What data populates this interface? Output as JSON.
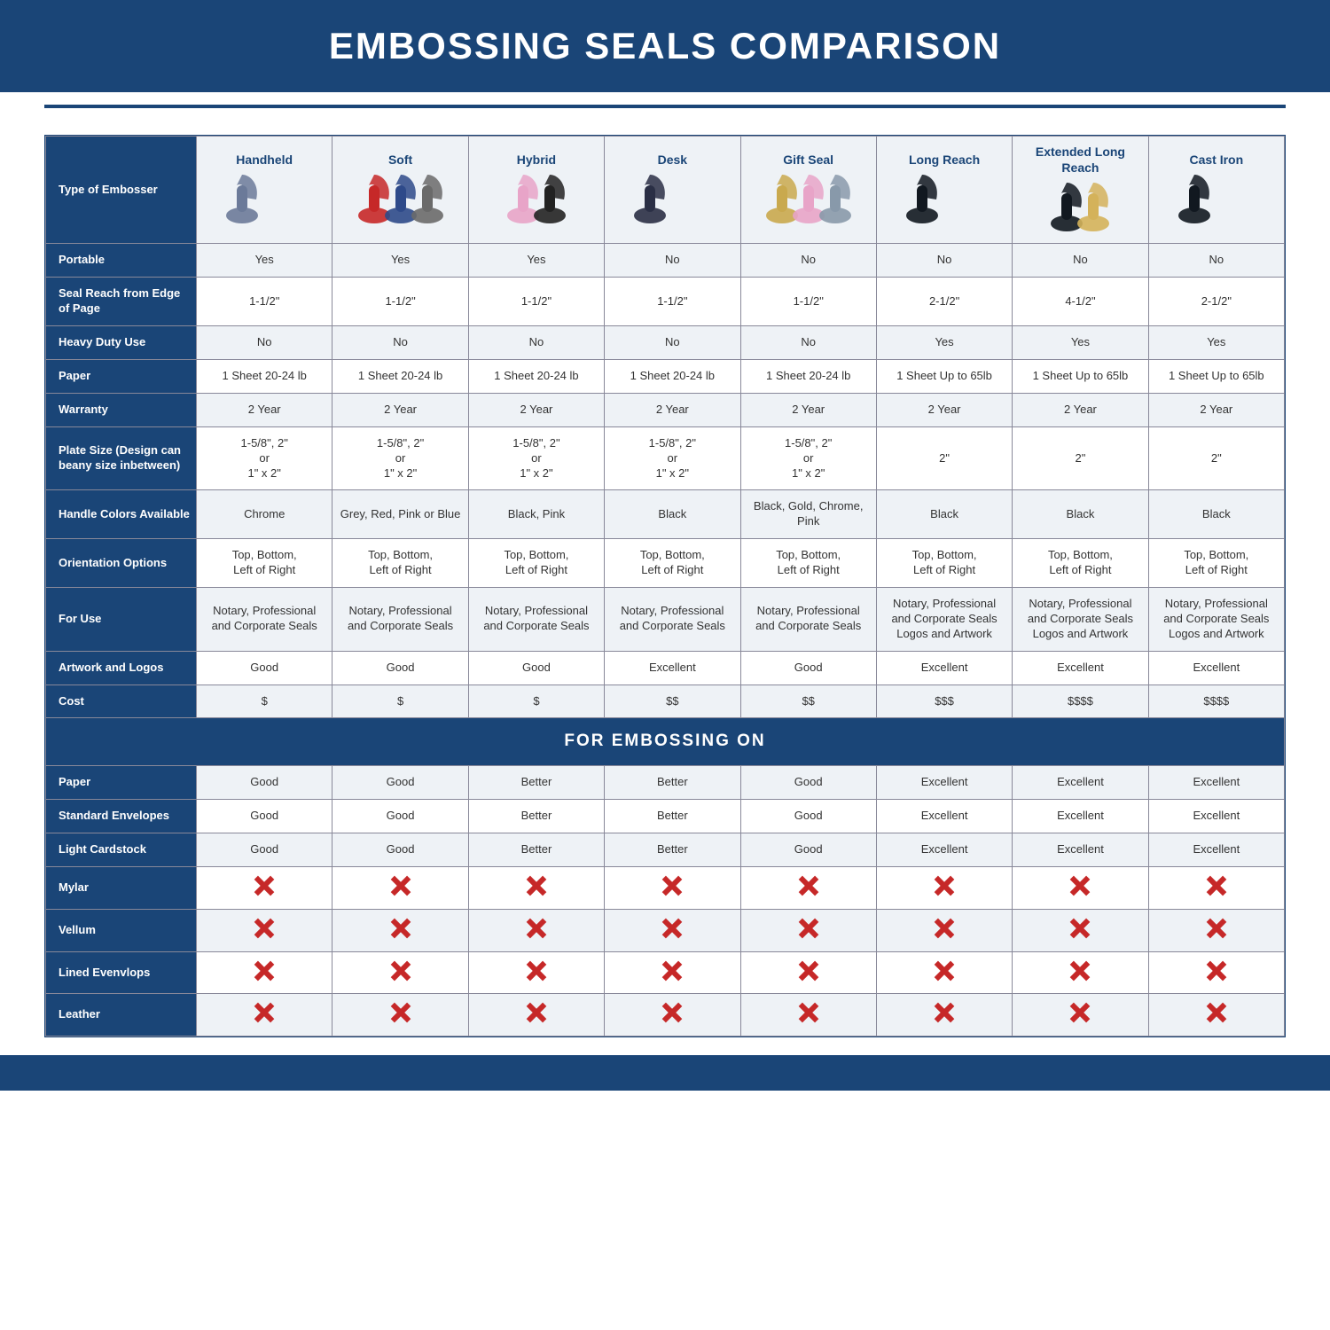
{
  "title": "EMBOSSING SEALS COMPARISON",
  "colors": {
    "brand": "#1a4577",
    "bg_alt": "#eef2f6",
    "bg": "#ffffff",
    "x": "#c62828",
    "border": "#889"
  },
  "typography": {
    "title_fontsize": 42,
    "header_fontsize": 14,
    "cell_fontsize": 13,
    "section_fontsize": 19
  },
  "header": {
    "label": "Type of Embosser",
    "columns": [
      "Handheld",
      "Soft",
      "Hybrid",
      "Desk",
      "Gift Seal",
      "Long Reach",
      "Extended Long Reach",
      "Cast Iron"
    ]
  },
  "product_images": [
    {
      "name": "handheld",
      "shapes": [
        {
          "fill": "#6b7a99"
        }
      ]
    },
    {
      "name": "soft",
      "shapes": [
        {
          "fill": "#c62828"
        },
        {
          "fill": "#2e4a8a"
        },
        {
          "fill": "#6a6a6a"
        }
      ]
    },
    {
      "name": "hybrid",
      "shapes": [
        {
          "fill": "#e8a4c8"
        },
        {
          "fill": "#222222"
        }
      ]
    },
    {
      "name": "desk",
      "shapes": [
        {
          "fill": "#2a2f45"
        }
      ]
    },
    {
      "name": "gift",
      "shapes": [
        {
          "fill": "#c9a94e"
        },
        {
          "fill": "#e8a4c8"
        },
        {
          "fill": "#8899aa"
        }
      ]
    },
    {
      "name": "longreach",
      "shapes": [
        {
          "fill": "#111820"
        }
      ]
    },
    {
      "name": "extlongreach",
      "shapes": [
        {
          "fill": "#111820"
        },
        {
          "fill": "#d4b25a"
        }
      ]
    },
    {
      "name": "castiron",
      "shapes": [
        {
          "fill": "#111820"
        }
      ]
    }
  ],
  "rows": [
    {
      "label": "Portable",
      "cells": [
        "Yes",
        "Yes",
        "Yes",
        "No",
        "No",
        "No",
        "No",
        "No"
      ]
    },
    {
      "label": "Seal Reach from Edge of Page",
      "cells": [
        "1-1/2\"",
        "1-1/2\"",
        "1-1/2\"",
        "1-1/2\"",
        "1-1/2\"",
        "2-1/2\"",
        "4-1/2\"",
        "2-1/2\""
      ]
    },
    {
      "label": "Heavy Duty Use",
      "cells": [
        "No",
        "No",
        "No",
        "No",
        "No",
        "Yes",
        "Yes",
        "Yes"
      ]
    },
    {
      "label": "Paper",
      "cells": [
        "1 Sheet 20-24 lb",
        "1 Sheet 20-24 lb",
        "1 Sheet 20-24 lb",
        "1 Sheet 20-24 lb",
        "1 Sheet 20-24 lb",
        "1 Sheet Up to 65lb",
        "1 Sheet Up to 65lb",
        "1 Sheet Up to 65lb"
      ]
    },
    {
      "label": "Warranty",
      "cells": [
        "2 Year",
        "2 Year",
        "2 Year",
        "2 Year",
        "2 Year",
        "2 Year",
        "2 Year",
        "2 Year"
      ]
    },
    {
      "label": "Plate Size (Design can beany size inbetween)",
      "cells": [
        "1-5/8\", 2\"\nor\n1\" x 2\"",
        "1-5/8\", 2\"\nor\n1\" x 2\"",
        "1-5/8\", 2\"\nor\n1\" x 2\"",
        "1-5/8\", 2\"\nor\n1\" x 2\"",
        "1-5/8\", 2\"\nor\n1\" x 2\"",
        "2\"",
        "2\"",
        "2\""
      ]
    },
    {
      "label": "Handle Colors Available",
      "cells": [
        "Chrome",
        "Grey, Red, Pink or Blue",
        "Black, Pink",
        "Black",
        "Black, Gold, Chrome, Pink",
        "Black",
        "Black",
        "Black"
      ]
    },
    {
      "label": "Orientation Options",
      "cells": [
        "Top, Bottom,\nLeft of Right",
        "Top, Bottom,\nLeft of Right",
        "Top, Bottom,\nLeft of Right",
        "Top, Bottom,\nLeft of Right",
        "Top, Bottom,\nLeft of Right",
        "Top, Bottom,\nLeft of Right",
        "Top, Bottom,\nLeft of Right",
        "Top, Bottom,\nLeft of Right"
      ]
    },
    {
      "label": "For Use",
      "cells": [
        "Notary, Professional and Corporate Seals",
        "Notary, Professional and Corporate Seals",
        "Notary, Professional and Corporate Seals",
        "Notary, Professional and Corporate Seals",
        "Notary, Professional and Corporate Seals",
        "Notary, Professional and Corporate Seals Logos and Artwork",
        "Notary, Professional and Corporate Seals Logos and Artwork",
        "Notary, Professional and Corporate Seals Logos and Artwork"
      ]
    },
    {
      "label": "Artwork and Logos",
      "cells": [
        "Good",
        "Good",
        "Good",
        "Excellent",
        "Good",
        "Excellent",
        "Excellent",
        "Excellent"
      ]
    },
    {
      "label": "Cost",
      "cells": [
        "$",
        "$",
        "$",
        "$$",
        "$$",
        "$$$",
        "$$$$",
        "$$$$"
      ]
    }
  ],
  "section2_title": "FOR EMBOSSING ON",
  "rows2": [
    {
      "label": "Paper",
      "cells": [
        "Good",
        "Good",
        "Better",
        "Better",
        "Good",
        "Excellent",
        "Excellent",
        "Excellent"
      ]
    },
    {
      "label": "Standard Envelopes",
      "cells": [
        "Good",
        "Good",
        "Better",
        "Better",
        "Good",
        "Excellent",
        "Excellent",
        "Excellent"
      ]
    },
    {
      "label": "Light Cardstock",
      "cells": [
        "Good",
        "Good",
        "Better",
        "Better",
        "Good",
        "Excellent",
        "Excellent",
        "Excellent"
      ]
    },
    {
      "label": "Mylar",
      "cells": [
        "X",
        "X",
        "X",
        "X",
        "X",
        "X",
        "X",
        "X"
      ]
    },
    {
      "label": "Vellum",
      "cells": [
        "X",
        "X",
        "X",
        "X",
        "X",
        "X",
        "X",
        "X"
      ]
    },
    {
      "label": "Lined Evenvlops",
      "cells": [
        "X",
        "X",
        "X",
        "X",
        "X",
        "X",
        "X",
        "X"
      ]
    },
    {
      "label": "Leather",
      "cells": [
        "X",
        "X",
        "X",
        "X",
        "X",
        "X",
        "X",
        "X"
      ]
    }
  ]
}
